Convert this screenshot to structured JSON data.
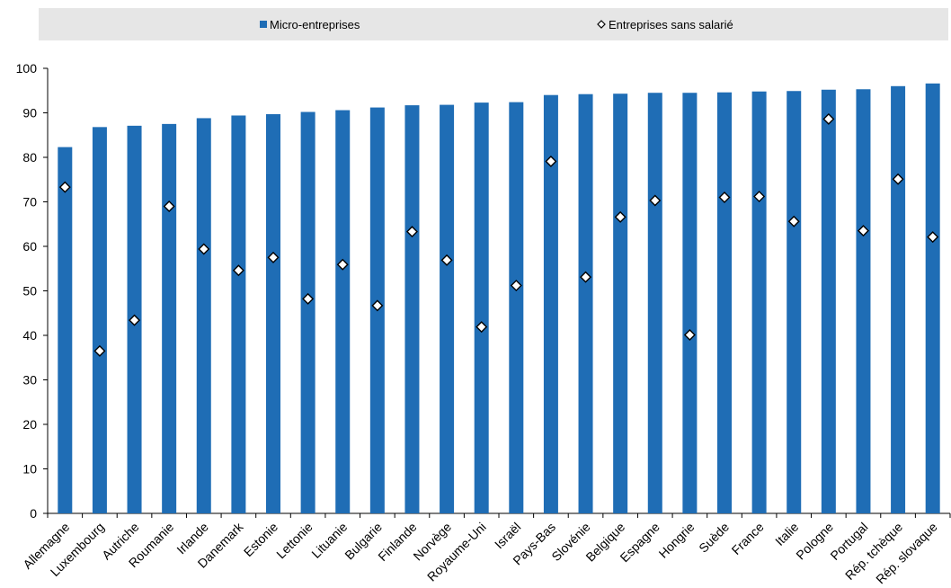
{
  "chart_data": {
    "type": "bar",
    "categories": [
      "Allemagne",
      "Luxembourg",
      "Autriche",
      "Roumanie",
      "Irlande",
      "Danemark",
      "Estonie",
      "Lettonie",
      "Lituanie",
      "Bulgarie",
      "Finlande",
      "Norvège",
      "Royaume-Uni",
      "Israël",
      "Pays-Bas",
      "Slovénie",
      "Belgique",
      "Espagne",
      "Hongrie",
      "Suède",
      "France",
      "Italie",
      "Pologne",
      "Portugal",
      "Rép. tchèque",
      "Rép. slovaque"
    ],
    "series": [
      {
        "name": "Micro-entreprises",
        "mark": "bar",
        "color": "#1f6db5",
        "values": [
          82.3,
          86.8,
          87.1,
          87.5,
          88.8,
          89.4,
          89.7,
          90.2,
          90.6,
          91.2,
          91.7,
          91.8,
          92.3,
          92.4,
          94.0,
          94.2,
          94.3,
          94.5,
          94.5,
          94.6,
          94.8,
          94.9,
          95.2,
          95.3,
          96.0,
          96.6
        ]
      },
      {
        "name": "Entreprises sans salarié",
        "mark": "diamond",
        "color": "#ffffff",
        "values": [
          73.3,
          36.5,
          43.4,
          69.0,
          59.4,
          54.6,
          57.5,
          48.2,
          55.9,
          46.7,
          63.3,
          56.9,
          41.9,
          51.2,
          79.1,
          53.1,
          66.6,
          70.3,
          40.1,
          71.0,
          71.2,
          65.6,
          88.6,
          63.5,
          75.1,
          62.1
        ]
      }
    ],
    "yticks": [
      0,
      10,
      20,
      30,
      40,
      50,
      60,
      70,
      80,
      90,
      100
    ],
    "ylim": [
      0,
      100
    ],
    "grid": false,
    "legend_position": "top"
  }
}
